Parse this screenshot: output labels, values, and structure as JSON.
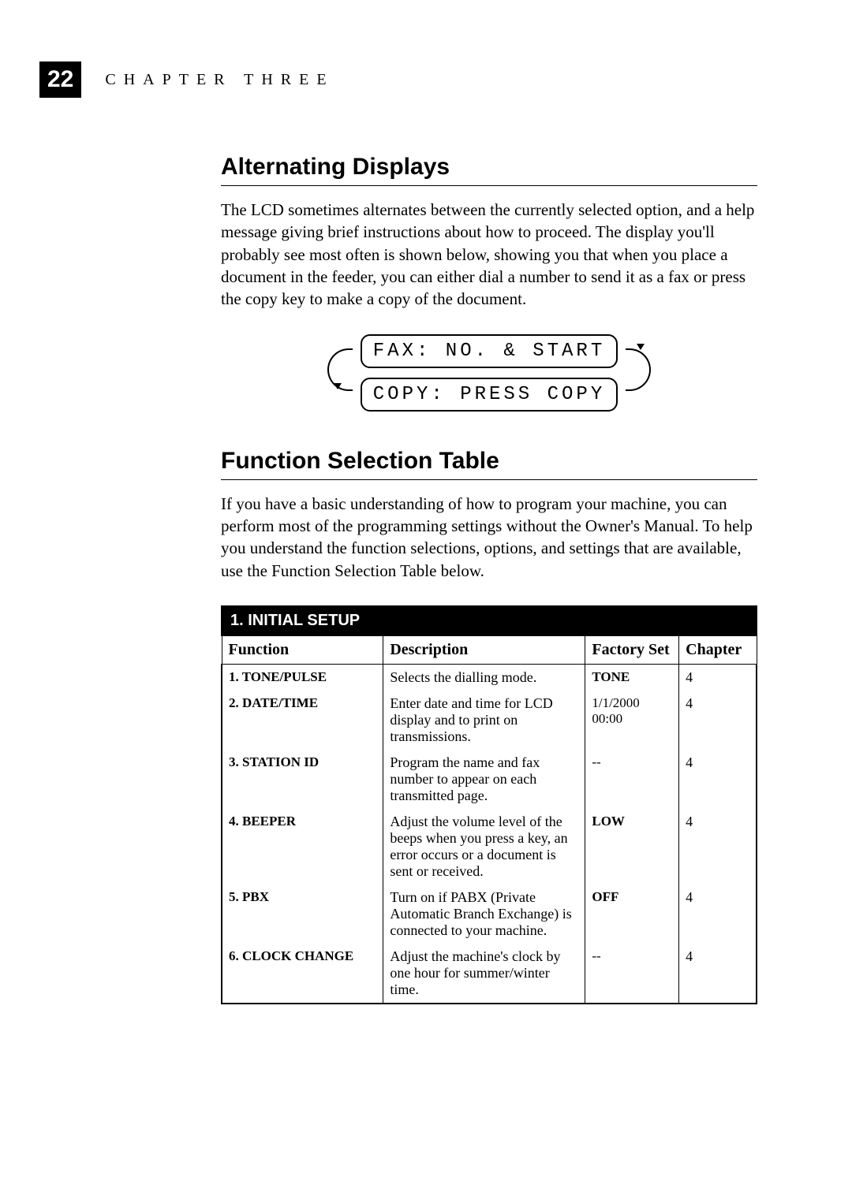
{
  "page_number": "22",
  "chapter_label": "CHAPTER THREE",
  "section1": {
    "title": "Alternating Displays",
    "body": "The LCD sometimes alternates between the currently selected option, and a help message giving brief instructions about how to proceed. The display you'll probably see most often is shown below, showing you that when you place a document in the feeder, you can either dial a number to send it as a fax or press the copy key to make a copy of the document."
  },
  "lcd": {
    "line1": "FAX: NO. & START",
    "line2": "COPY: PRESS COPY"
  },
  "section2": {
    "title": "Function Selection Table",
    "body": "If you have a basic understanding of how to program your machine, you can perform most of the programming settings without the Owner's Manual. To help you understand the function selections, options, and settings that are available, use the Function Selection Table below."
  },
  "table": {
    "title": "1. INITIAL SETUP",
    "columns": {
      "function": "Function",
      "description": "Description",
      "factory_set": "Factory Set",
      "chapter": "Chapter"
    },
    "rows": [
      {
        "func": "1. TONE/PULSE",
        "desc": "Selects the dialling mode.",
        "factory": "TONE",
        "factory_bold": true,
        "chapter": "4"
      },
      {
        "func": "2. DATE/TIME",
        "desc": "Enter date and time for LCD display and to print on transmissions.",
        "factory": "1/1/2000  00:00",
        "factory_bold": false,
        "chapter": "4"
      },
      {
        "func": "3. STATION ID",
        "desc": "Program the name and fax number to appear on each transmitted page.",
        "factory": "--",
        "factory_bold": false,
        "chapter": "4"
      },
      {
        "func": "4. BEEPER",
        "desc": "Adjust the volume level of the beeps when you press a key, an error occurs or a document is sent or received.",
        "factory": "LOW",
        "factory_bold": true,
        "chapter": "4"
      },
      {
        "func": "5. PBX",
        "desc": "Turn on if PABX (Private Automatic Branch Exchange) is connected to your machine.",
        "factory": "OFF",
        "factory_bold": true,
        "chapter": "4"
      },
      {
        "func": "6. CLOCK CHANGE",
        "desc": "Adjust the machine's clock by one hour for summer/winter time.",
        "factory": "--",
        "factory_bold": false,
        "chapter": "4"
      }
    ]
  },
  "style": {
    "page_bg": "#ffffff",
    "text_color": "#000000",
    "header_bg": "#000000",
    "header_fg": "#ffffff"
  }
}
